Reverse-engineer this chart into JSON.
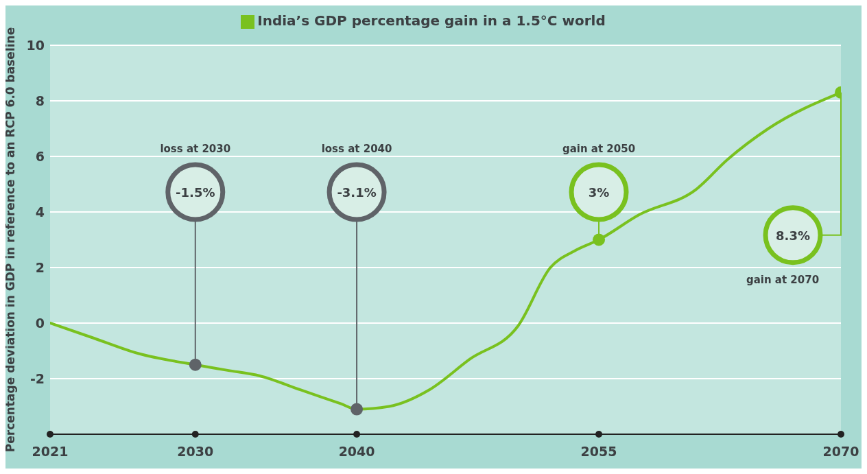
{
  "chart_data": {
    "type": "line",
    "xlim": [
      2021,
      2070
    ],
    "xticks": [
      2021,
      2030,
      2040,
      2055,
      2070
    ],
    "ylim": [
      -4,
      10
    ],
    "yticks": [
      -2,
      0,
      2,
      4,
      6,
      8,
      10
    ],
    "ylabel": "Percentage deviation in GDP in reference to an RCP 6.0 baseline",
    "grid": "y",
    "legend": "top",
    "marker": "none",
    "line_style": "solid",
    "series": [
      {
        "name": "India’s GDP percentage gain in a 1.5°C world",
        "color": "#79c11f",
        "x": [
          2021,
          2023.5,
          2026.5,
          2030,
          2032,
          2034,
          2036.5,
          2039,
          2040,
          2042,
          2044.5,
          2047,
          2050,
          2052,
          2053.5,
          2055,
          2057.5,
          2061,
          2063,
          2065.5,
          2070
        ],
        "values": [
          0,
          -0.5,
          -1.1,
          -1.5,
          -1.7,
          -1.9,
          -2.4,
          -2.9,
          -3.1,
          -3,
          -2.4,
          -1.3,
          -0.1,
          2,
          2.6,
          3,
          3.9,
          4.8,
          5.9,
          7,
          8.3
        ]
      },
      {
        "type": "scatter",
        "marker": "circle",
        "x": [
          2030,
          2040,
          2055,
          2070
        ],
        "values": [
          -1.5,
          -3.1,
          3,
          8.3
        ],
        "colors": [
          "#5f6368",
          "#5f6368",
          "#79c11f",
          "#79c11f"
        ]
      }
    ],
    "annotations": [
      "loss at 2030",
      "-1.5%",
      "loss at 2040",
      "-3.1%",
      "gain at 2050",
      "3%",
      "gain at 2070",
      {
        "text": "8.3%",
        "x": 2070,
        "y": 8.3
      }
    ]
  }
}
